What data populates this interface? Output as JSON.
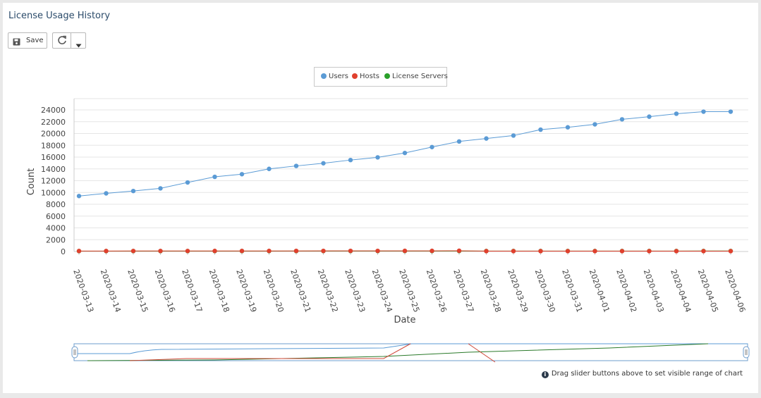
{
  "page": {
    "title": "License Usage History"
  },
  "toolbar": {
    "save_label": "Save",
    "refresh_icon": "refresh-icon",
    "dropdown_icon": "caret-down-icon"
  },
  "hint": {
    "text": "Drag slider buttons above to set visible range of chart"
  },
  "colors": {
    "users": "#5b9bd5",
    "hosts": "#e0402e",
    "servers": "#2aa02a"
  },
  "chart_data": {
    "type": "line",
    "xlabel": "Date",
    "ylabel": "Count",
    "ylim": [
      0,
      24000
    ],
    "yticks": [
      0,
      2000,
      4000,
      6000,
      8000,
      10000,
      12000,
      14000,
      16000,
      18000,
      20000,
      22000,
      24000
    ],
    "grid": true,
    "legend_position": "top-center",
    "categories": [
      "2020-03-13",
      "2020-03-14",
      "2020-03-15",
      "2020-03-16",
      "2020-03-17",
      "2020-03-18",
      "2020-03-19",
      "2020-03-20",
      "2020-03-21",
      "2020-03-22",
      "2020-03-23",
      "2020-03-24",
      "2020-03-25",
      "2020-03-26",
      "2020-03-27",
      "2020-03-28",
      "2020-03-29",
      "2020-03-30",
      "2020-03-31",
      "2020-04-01",
      "2020-04-02",
      "2020-04-03",
      "2020-04-04",
      "2020-04-05",
      "2020-04-06"
    ],
    "series": [
      {
        "name": "Users",
        "color": "#5b9bd5",
        "values": [
          9400,
          9850,
          10250,
          10700,
          11700,
          12650,
          13100,
          14000,
          14500,
          14950,
          15500,
          15950,
          16700,
          17700,
          18650,
          19150,
          19650,
          20650,
          21050,
          21550,
          22400,
          22850,
          23350,
          23700,
          23700
        ]
      },
      {
        "name": "Hosts",
        "color": "#e0402e",
        "values": [
          80,
          82,
          84,
          86,
          88,
          90,
          92,
          94,
          96,
          98,
          100,
          102,
          104,
          110,
          120,
          60,
          60,
          60,
          60,
          60,
          60,
          60,
          60,
          60,
          60
        ]
      },
      {
        "name": "License Servers",
        "color": "#2aa02a",
        "values": [
          60,
          61,
          62,
          63,
          64,
          65,
          66,
          67,
          68,
          69,
          70,
          71,
          72,
          73,
          74,
          75,
          76,
          77,
          78,
          79,
          80,
          81,
          82,
          83,
          84
        ]
      }
    ]
  }
}
